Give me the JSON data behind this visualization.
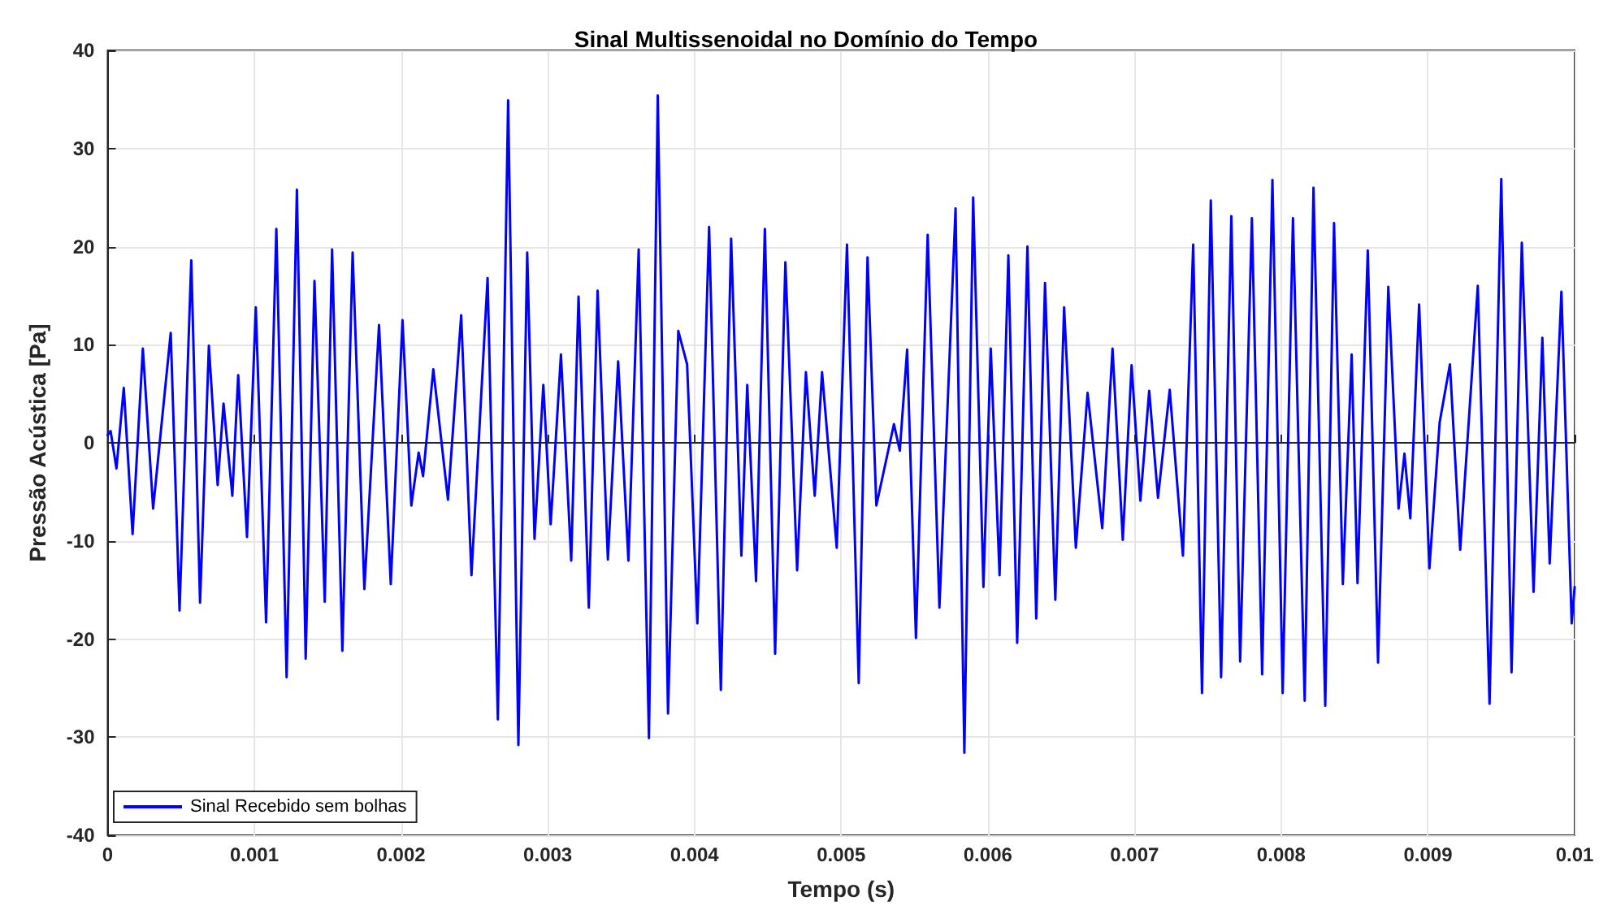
{
  "chart_data": {
    "type": "line",
    "title": "Sinal Multissenoidal no Domínio do Tempo",
    "xlabel": "Tempo (s)",
    "ylabel": "Pressão Acústica [Pa]",
    "xlim": [
      0,
      0.01
    ],
    "xticks": [
      0,
      0.001,
      0.002,
      0.003,
      0.004,
      0.005,
      0.006,
      0.007,
      0.008,
      0.009,
      0.01
    ],
    "ylim": [
      -40,
      40
    ],
    "yticks": [
      -40,
      -30,
      -20,
      -10,
      0,
      10,
      20,
      30,
      40
    ],
    "grid": true,
    "legend": "bottom left",
    "marker": "none",
    "line_style": "solid",
    "series": [
      {
        "name": "Sinal Recebido sem bolhas",
        "color": "#0000ff",
        "x": [
          0,
          2e-05,
          6e-05,
          0.00011,
          0.00017,
          0.00024,
          0.00031,
          0.00043,
          0.00049,
          0.00057,
          0.00063,
          0.00069,
          0.00075,
          0.00079,
          0.00085,
          0.00089,
          0.00095,
          0.00101,
          0.00108,
          0.00115,
          0.00122,
          0.00129,
          0.00135,
          0.00141,
          0.00148,
          0.00153,
          0.0016,
          0.00167,
          0.00175,
          0.00185,
          0.00193,
          0.00201,
          0.00207,
          0.00212,
          0.00215,
          0.00222,
          0.00232,
          0.00241,
          0.00248,
          0.00259,
          0.00266,
          0.00273,
          0.0028,
          0.00286,
          0.00291,
          0.00297,
          0.00302,
          0.00309,
          0.00316,
          0.00321,
          0.00328,
          0.00334,
          0.00341,
          0.00348,
          0.00355,
          0.00362,
          0.00369,
          0.00375,
          0.00382,
          0.00389,
          0.00395,
          0.00402,
          0.0041,
          0.00418,
          0.00425,
          0.00432,
          0.00436,
          0.00442,
          0.00448,
          0.00455,
          0.00462,
          0.0047,
          0.00476,
          0.00482,
          0.00487,
          0.00497,
          0.00504,
          0.00512,
          0.00518,
          0.00524,
          0.00536,
          0.0054,
          0.00545,
          0.00551,
          0.00559,
          0.00567,
          0.00578,
          0.00584,
          0.0059,
          0.00597,
          0.00602,
          0.00608,
          0.00614,
          0.0062,
          0.00627,
          0.00633,
          0.00639,
          0.00646,
          0.00652,
          0.0066,
          0.00668,
          0.00678,
          0.00685,
          0.00692,
          0.00698,
          0.00704,
          0.0071,
          0.00716,
          0.00724,
          0.00733,
          0.0074,
          0.00746,
          0.00752,
          0.00759,
          0.00766,
          0.00772,
          0.0078,
          0.00787,
          0.00794,
          0.00801,
          0.00808,
          0.00816,
          0.00822,
          0.0083,
          0.00836,
          0.00842,
          0.00848,
          0.00852,
          0.00859,
          0.00866,
          0.00873,
          0.0088,
          0.00884,
          0.00888,
          0.00894,
          0.00901,
          0.00908,
          0.00915,
          0.00922,
          0.00934,
          0.00942,
          0.0095,
          0.00957,
          0.00964,
          0.00972,
          0.00978,
          0.00983,
          0.00991,
          0.00998,
          0.01
        ],
        "values": [
          0.8,
          1.2,
          -2.6,
          5.6,
          -9.3,
          9.6,
          -6.7,
          11.2,
          -17.1,
          18.6,
          -16.3,
          9.9,
          -4.3,
          4.0,
          -5.4,
          6.9,
          -9.6,
          13.8,
          -18.3,
          21.8,
          -23.9,
          25.8,
          -22.0,
          16.5,
          -16.2,
          19.7,
          -21.2,
          19.4,
          -14.9,
          12.0,
          -14.4,
          12.5,
          -6.4,
          -1.0,
          -3.4,
          7.5,
          -5.8,
          13.0,
          -13.5,
          16.8,
          -28.2,
          34.9,
          -30.8,
          19.4,
          -9.8,
          5.9,
          -8.3,
          9.0,
          -12.0,
          14.9,
          -16.8,
          15.5,
          -11.9,
          8.3,
          -12.0,
          19.7,
          -30.1,
          35.4,
          -27.6,
          11.4,
          8.0,
          -18.4,
          22.0,
          -25.2,
          20.8,
          -11.5,
          5.9,
          -14.1,
          21.8,
          -21.5,
          18.4,
          -13.0,
          7.2,
          -5.4,
          7.2,
          -10.7,
          20.2,
          -24.5,
          18.9,
          -6.4,
          1.9,
          -0.8,
          9.5,
          -19.9,
          21.2,
          -16.8,
          23.9,
          -31.6,
          25.0,
          -14.7,
          9.6,
          -13.5,
          19.1,
          -20.4,
          20.0,
          -17.9,
          16.3,
          -16.0,
          13.8,
          -10.7,
          5.1,
          -8.7,
          9.6,
          -9.9,
          7.9,
          -5.9,
          5.3,
          -5.6,
          5.4,
          -11.5,
          20.2,
          -25.5,
          24.7,
          -23.9,
          23.1,
          -22.3,
          22.9,
          -23.6,
          26.8,
          -25.5,
          22.9,
          -26.3,
          26.0,
          -26.8,
          22.4,
          -14.4,
          9.0,
          -14.3,
          19.6,
          -22.4,
          15.9,
          -6.7,
          -1.1,
          -7.7,
          14.1,
          -12.8,
          2.1,
          8.0,
          -10.9,
          16.0,
          -26.6,
          26.9,
          -23.4,
          20.4,
          -15.2,
          10.7,
          -12.3,
          15.4,
          -18.4,
          -14.7
        ]
      }
    ]
  }
}
